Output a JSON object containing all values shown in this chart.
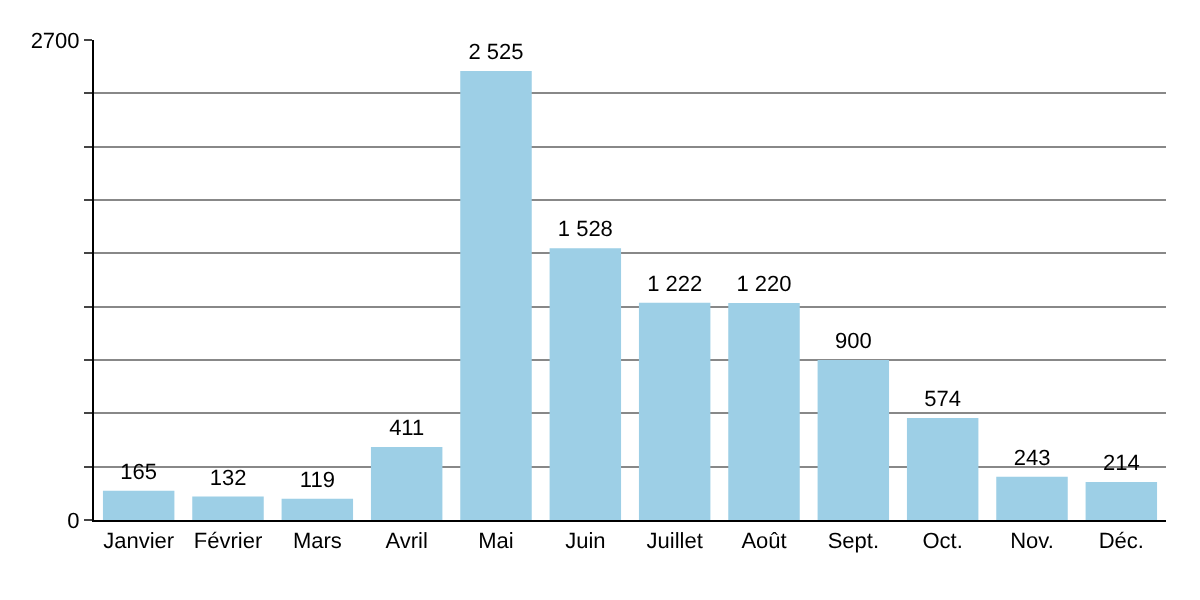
{
  "chart_data": {
    "type": "bar",
    "categories": [
      "Janvier",
      "Février",
      "Mars",
      "Avril",
      "Mai",
      "Juin",
      "Juillet",
      "Août",
      "Sept.",
      "Oct.",
      "Nov.",
      "Déc."
    ],
    "values": [
      165,
      132,
      119,
      411,
      2525,
      1528,
      1222,
      1220,
      900,
      574,
      243,
      214
    ],
    "value_labels": [
      "165",
      "132",
      "119",
      "411",
      "2 525",
      "1 528",
      "1 222",
      "1 220",
      "900",
      "574",
      "243",
      "214"
    ],
    "color": "#9dcfe6",
    "ylim": [
      0,
      2700
    ],
    "yticks": [
      0,
      {
        "value": 300,
        "label": null
      },
      {
        "value": 600,
        "label": null
      },
      {
        "value": 900,
        "label": null
      },
      {
        "value": 1200,
        "label": null
      },
      {
        "value": 1500,
        "label": null
      },
      {
        "value": 1800,
        "label": null
      },
      {
        "value": 2100,
        "label": null
      },
      {
        "value": 2400,
        "label": null
      },
      2700
    ],
    "grid": "y"
  }
}
